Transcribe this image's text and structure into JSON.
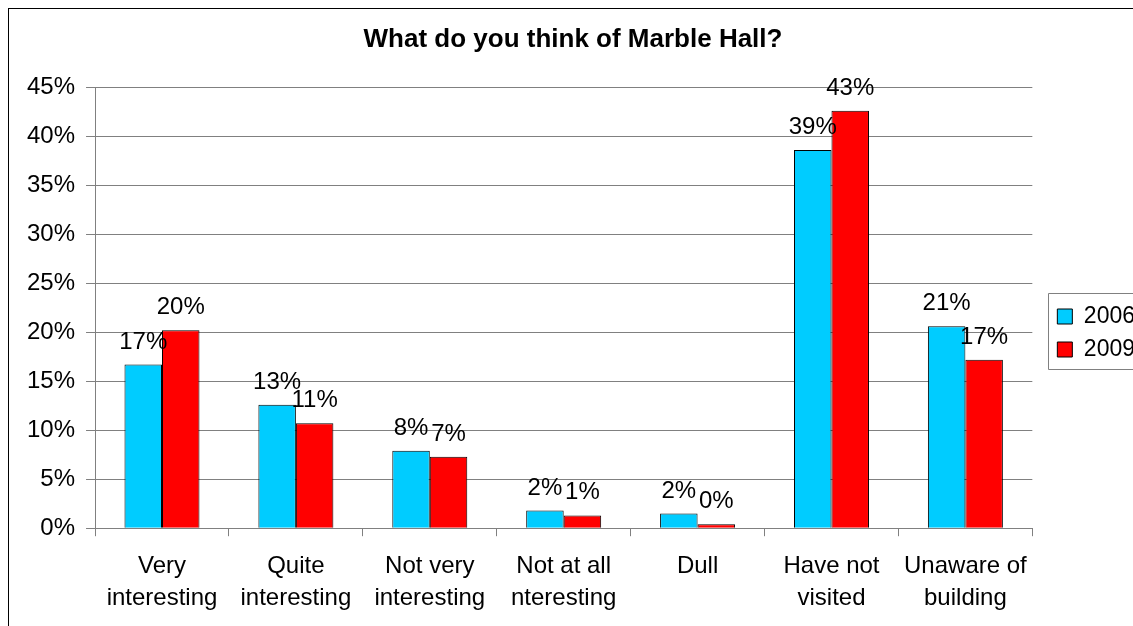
{
  "chart_data": {
    "type": "bar",
    "title": "What do you think of Marble Hall?",
    "categories": [
      "Very interesting",
      "Quite interesting",
      "Not very interesting",
      "Not at all nteresting",
      "Dull",
      "Have not visited",
      "Unaware of building"
    ],
    "series": [
      {
        "name": "2006",
        "color": "#00ccff",
        "values": [
          16.7,
          12.6,
          7.9,
          1.8,
          1.5,
          38.6,
          20.6
        ],
        "value_labels": [
          "17%",
          "13%",
          "8%",
          "2%",
          "2%",
          "39%",
          "21%"
        ]
      },
      {
        "name": "2009",
        "color": "#ff0000",
        "values": [
          20.2,
          10.7,
          7.3,
          1.3,
          0.4,
          42.6,
          17.2
        ],
        "value_labels": [
          "20%",
          "11%",
          "7%",
          "1%",
          "0%",
          "43%",
          "17%"
        ]
      }
    ],
    "ylim": [
      0,
      45
    ],
    "yticks": [
      {
        "value": 0,
        "label": "0%"
      },
      {
        "value": 5,
        "label": "5%"
      },
      {
        "value": 10,
        "label": "10%"
      },
      {
        "value": 15,
        "label": "15%"
      },
      {
        "value": 20,
        "label": "20%"
      },
      {
        "value": 25,
        "label": "25%"
      },
      {
        "value": 30,
        "label": "30%"
      },
      {
        "value": 35,
        "label": "35%"
      },
      {
        "value": 40,
        "label": "40%"
      },
      {
        "value": 45,
        "label": "45%"
      }
    ],
    "grid": "y",
    "legend": "right"
  }
}
